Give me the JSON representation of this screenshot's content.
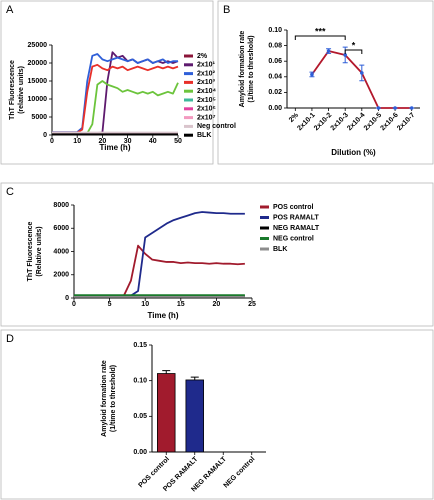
{
  "chart_data": [
    {
      "type": "line",
      "panel": "A",
      "xlabel": "Time (h)",
      "ylabel": [
        "ThT Fluorescence",
        "(relative units)"
      ],
      "x": [
        0,
        2,
        4,
        6,
        8,
        10,
        12,
        14,
        16,
        18,
        20,
        22,
        24,
        26,
        28,
        30,
        32,
        34,
        36,
        38,
        40,
        42,
        44,
        46,
        48,
        50
      ],
      "xlim": [
        0,
        50
      ],
      "xticks": [
        0,
        10,
        20,
        30,
        40,
        50
      ],
      "ylim": [
        0,
        25000
      ],
      "yticks": [
        0,
        5000,
        10000,
        15000,
        20000,
        25000
      ],
      "series": [
        {
          "name": "2%",
          "color": "#8b1538",
          "values": [
            300,
            300,
            300,
            300,
            300,
            300,
            300,
            300,
            300,
            300,
            300,
            300,
            300,
            300,
            300,
            300,
            300,
            300,
            300,
            300,
            300,
            300,
            300,
            300,
            300,
            300
          ]
        },
        {
          "name": "2x10¹",
          "color": "#5e1a6e",
          "values": [
            600,
            600,
            600,
            600,
            600,
            600,
            600,
            600,
            600,
            600,
            700,
            15000,
            23000,
            21500,
            22000,
            20500,
            21000,
            20000,
            20500,
            21000,
            20000,
            20500,
            20000,
            20500,
            20000,
            20500
          ]
        },
        {
          "name": "2x10²",
          "color": "#2f5fd8",
          "values": [
            800,
            800,
            800,
            800,
            800,
            800,
            2000,
            15000,
            22000,
            22500,
            21000,
            20500,
            21000,
            21500,
            21000,
            20500,
            21000,
            20000,
            20500,
            21000,
            20000,
            20500,
            21000,
            20000,
            20500,
            20500
          ]
        },
        {
          "name": "2x10³",
          "color": "#e8302a",
          "values": [
            700,
            700,
            700,
            700,
            700,
            700,
            1500,
            12000,
            19000,
            19500,
            18500,
            18000,
            19000,
            18500,
            19000,
            18000,
            18500,
            19000,
            18500,
            18000,
            18500,
            19000,
            18500,
            19000,
            18500,
            19000
          ]
        },
        {
          "name": "2x10⁴",
          "color": "#6cc43c",
          "values": [
            500,
            500,
            500,
            500,
            500,
            500,
            500,
            500,
            3000,
            14000,
            15000,
            14000,
            13500,
            13000,
            12000,
            12500,
            12000,
            11500,
            12000,
            11500,
            12000,
            11000,
            11500,
            12000,
            11500,
            14500
          ]
        },
        {
          "name": "2x10⁵",
          "color": "#3db89b",
          "values": [
            400,
            400,
            400,
            400,
            400,
            400,
            400,
            400,
            400,
            400,
            400,
            400,
            400,
            400,
            400,
            400,
            400,
            400,
            400,
            400,
            400,
            400,
            400,
            400,
            400,
            400
          ]
        },
        {
          "name": "2x10⁶",
          "color": "#e2409f",
          "values": [
            500,
            500,
            500,
            500,
            500,
            500,
            500,
            500,
            500,
            500,
            500,
            500,
            500,
            500,
            500,
            500,
            500,
            500,
            500,
            500,
            500,
            500,
            500,
            500,
            500,
            500
          ]
        },
        {
          "name": "2x10⁷",
          "color": "#f39ac0",
          "values": [
            600,
            600,
            600,
            600,
            600,
            600,
            600,
            600,
            600,
            600,
            600,
            600,
            600,
            600,
            600,
            600,
            600,
            600,
            600,
            600,
            600,
            600,
            600,
            600,
            600,
            600
          ]
        },
        {
          "name": "Neg control",
          "color": "#d9c4cc",
          "values": [
            700,
            700,
            700,
            700,
            700,
            700,
            700,
            700,
            700,
            700,
            700,
            700,
            700,
            700,
            700,
            700,
            700,
            700,
            700,
            700,
            700,
            700,
            700,
            700,
            700,
            700
          ]
        },
        {
          "name": "BLK",
          "color": "#000000",
          "values": [
            200,
            200,
            200,
            200,
            200,
            200,
            200,
            200,
            200,
            200,
            200,
            200,
            200,
            200,
            200,
            200,
            200,
            200,
            200,
            200,
            200,
            200,
            200,
            200,
            200,
            200
          ]
        }
      ]
    },
    {
      "type": "line",
      "panel": "B",
      "xlabel": "Dilution (%)",
      "ylabel": [
        "Amyloid formation rate",
        "(1/time to threshold)"
      ],
      "categories": [
        "2%",
        "2x10-1",
        "2x10-2",
        "2x10-3",
        "2x10-4",
        "2x10-5",
        "2x10-6",
        "2x10-7"
      ],
      "ylim": [
        0,
        0.1
      ],
      "yticks": [
        {
          "value": 0,
          "label": "0.00"
        },
        {
          "value": 0.02,
          "label": "0.02"
        },
        {
          "value": 0.04,
          "label": "0.04"
        },
        {
          "value": 0.06,
          "label": "0.06"
        },
        {
          "value": 0.08,
          "label": "0.08"
        },
        {
          "value": 0.1,
          "label": "0.10"
        }
      ],
      "annotations": [
        "***",
        "*"
      ],
      "series": [
        {
          "color": "#b3182c",
          "marker_color": "#2f5fd8",
          "values": [
            null,
            0.043,
            0.073,
            0.068,
            0.045,
            0,
            0,
            0
          ],
          "errors": [
            null,
            0.003,
            0.003,
            0.01,
            0.01,
            0,
            0,
            0
          ]
        }
      ]
    },
    {
      "type": "line",
      "panel": "C",
      "xlabel": "Time (h)",
      "ylabel": [
        "ThT Fluorescence",
        "(Relative units)"
      ],
      "x": [
        0,
        1,
        2,
        3,
        4,
        5,
        6,
        7,
        8,
        9,
        10,
        11,
        12,
        13,
        14,
        15,
        16,
        17,
        18,
        19,
        20,
        21,
        22,
        23,
        24
      ],
      "xlim": [
        0,
        25
      ],
      "xticks": [
        0,
        5,
        10,
        15,
        20,
        25
      ],
      "ylim": [
        0,
        8000
      ],
      "yticks": [
        0,
        2000,
        4000,
        6000,
        8000
      ],
      "series": [
        {
          "name": "POS control",
          "color": "#a11b2d",
          "values": [
            200,
            200,
            200,
            200,
            200,
            200,
            200,
            200,
            1500,
            4500,
            3800,
            3300,
            3200,
            3100,
            3100,
            3000,
            3050,
            3000,
            3000,
            2950,
            3000,
            2950,
            2950,
            2900,
            2950
          ]
        },
        {
          "name": "POS RAMALT",
          "color": "#1f2a8c",
          "values": [
            200,
            200,
            200,
            200,
            200,
            200,
            200,
            200,
            200,
            600,
            5200,
            5600,
            6000,
            6400,
            6700,
            6900,
            7100,
            7300,
            7400,
            7350,
            7300,
            7300,
            7250,
            7250,
            7250
          ]
        },
        {
          "name": "NEG RAMALT",
          "color": "#000000",
          "values": [
            150,
            150,
            150,
            150,
            150,
            150,
            150,
            150,
            150,
            150,
            150,
            150,
            150,
            150,
            150,
            150,
            150,
            150,
            150,
            150,
            150,
            150,
            150,
            150,
            150
          ]
        },
        {
          "name": "NEG control",
          "color": "#1a7a2c",
          "values": [
            250,
            250,
            250,
            250,
            250,
            250,
            250,
            250,
            250,
            250,
            250,
            250,
            250,
            250,
            250,
            250,
            250,
            250,
            250,
            250,
            250,
            250,
            250,
            250,
            250
          ]
        },
        {
          "name": "BLK",
          "color": "#8c8c8c",
          "values": [
            100,
            100,
            100,
            100,
            100,
            100,
            100,
            100,
            100,
            100,
            100,
            100,
            100,
            100,
            100,
            100,
            100,
            100,
            100,
            100,
            100,
            100,
            100,
            100,
            100
          ]
        }
      ]
    },
    {
      "type": "bar",
      "panel": "D",
      "ylabel": [
        "Amyloid formation rate",
        "(1/time to threshold)"
      ],
      "categories": [
        "POS control",
        "POS RAMALT",
        "NEG RAMALT",
        "NEG control"
      ],
      "values": [
        0.11,
        0.101,
        0,
        0
      ],
      "errors": [
        0.004,
        0.004,
        0,
        0
      ],
      "colors": [
        "#a11b2d",
        "#1f2a8c",
        "#000000",
        "#000000"
      ],
      "ylim": [
        0,
        0.15
      ],
      "yticks": [
        {
          "value": 0,
          "label": "0.00"
        },
        {
          "value": 0.05,
          "label": "0.05"
        },
        {
          "value": 0.1,
          "label": "0.10"
        },
        {
          "value": 0.15,
          "label": "0.15"
        }
      ]
    }
  ]
}
